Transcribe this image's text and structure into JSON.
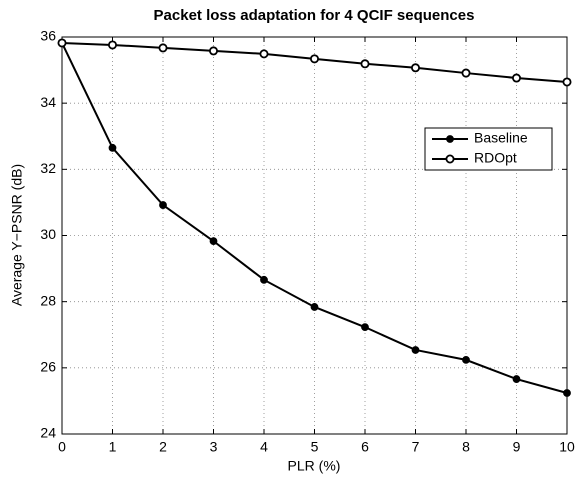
{
  "chart_data": {
    "type": "line",
    "title": "Packet loss adaptation for 4 QCIF sequences",
    "xlabel": "PLR (%)",
    "ylabel": "Average Y−PSNR (dB)",
    "x": [
      0,
      1,
      2,
      3,
      4,
      5,
      6,
      7,
      8,
      9,
      10
    ],
    "series": [
      {
        "name": "Baseline",
        "color": "#000000",
        "marker": "filled",
        "values": [
          35.82,
          32.65,
          30.92,
          29.83,
          28.66,
          27.84,
          27.23,
          26.54,
          26.24,
          25.66,
          25.24
        ]
      },
      {
        "name": "RDOpt",
        "color": "#000000",
        "marker": "open",
        "values": [
          35.82,
          35.76,
          35.67,
          35.58,
          35.49,
          35.34,
          35.19,
          35.07,
          34.91,
          34.76,
          34.64
        ]
      }
    ],
    "xlim": [
      0,
      10
    ],
    "xticks": [
      0,
      1,
      2,
      3,
      4,
      5,
      6,
      7,
      8,
      9,
      10
    ],
    "ylim": [
      24,
      36
    ],
    "yticks": [
      24,
      26,
      28,
      30,
      32,
      34,
      36
    ],
    "grid": true,
    "legend": "upper right"
  }
}
